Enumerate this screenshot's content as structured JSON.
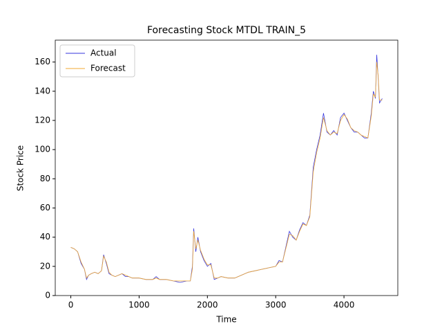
{
  "chart_data": {
    "type": "line",
    "title": "Forecasting Stock MTDL TRAIN_5",
    "x_label": "Time",
    "y_label": "Stock Price",
    "x": [
      0,
      50,
      100,
      150,
      200,
      230,
      260,
      300,
      350,
      400,
      450,
      480,
      520,
      560,
      600,
      650,
      700,
      750,
      800,
      850,
      900,
      1000,
      1100,
      1200,
      1250,
      1300,
      1400,
      1500,
      1600,
      1700,
      1750,
      1780,
      1800,
      1830,
      1860,
      1900,
      1950,
      2000,
      2050,
      2100,
      2150,
      2200,
      2300,
      2400,
      2500,
      2600,
      2700,
      2800,
      2900,
      3000,
      3050,
      3100,
      3200,
      3250,
      3300,
      3350,
      3400,
      3450,
      3500,
      3550,
      3600,
      3650,
      3700,
      3750,
      3800,
      3850,
      3900,
      3950,
      4000,
      4050,
      4100,
      4150,
      4200,
      4250,
      4300,
      4350,
      4400,
      4430,
      4460,
      4480,
      4500,
      4520,
      4560
    ],
    "series": [
      {
        "name": "Actual",
        "color": "#3333dd",
        "values": [
          33,
          32,
          30,
          22,
          18,
          11,
          14,
          15,
          16,
          15,
          17,
          28,
          22,
          15,
          14,
          13,
          14,
          15,
          13,
          13,
          12,
          12,
          11,
          11,
          13,
          11,
          11,
          10,
          9,
          10,
          10,
          20,
          46,
          30,
          40,
          30,
          24,
          20,
          22,
          11,
          12,
          13,
          12,
          12,
          14,
          16,
          17,
          18,
          19,
          20,
          24,
          23,
          44,
          40,
          38,
          45,
          50,
          48,
          55,
          88,
          100,
          110,
          125,
          112,
          110,
          113,
          110,
          122,
          125,
          120,
          115,
          112,
          112,
          110,
          108,
          108,
          125,
          140,
          135,
          165,
          150,
          132,
          135
        ]
      },
      {
        "name": "Forecast",
        "color": "#f0a830",
        "values": [
          33,
          32,
          30,
          23,
          18,
          12,
          14,
          15,
          16,
          15,
          17,
          27,
          23,
          16,
          14,
          13,
          14,
          15,
          14,
          13,
          12,
          12,
          11,
          11,
          12,
          11,
          11,
          10,
          10,
          10,
          10,
          18,
          44,
          32,
          38,
          31,
          25,
          21,
          21,
          12,
          12,
          13,
          12,
          12,
          14,
          16,
          17,
          18,
          19,
          20,
          23,
          23,
          42,
          41,
          38,
          44,
          49,
          48,
          54,
          85,
          98,
          108,
          122,
          113,
          110,
          112,
          111,
          120,
          124,
          121,
          115,
          113,
          112,
          110,
          109,
          108,
          123,
          138,
          136,
          160,
          151,
          134,
          134
        ]
      }
    ],
    "xlim": [
      -228,
      4788
    ],
    "ylim": [
      0,
      175
    ],
    "xticks": [
      0,
      1000,
      2000,
      3000,
      4000
    ],
    "yticks": [
      0,
      20,
      40,
      60,
      80,
      100,
      120,
      140,
      160
    ],
    "legend": "upper left"
  }
}
